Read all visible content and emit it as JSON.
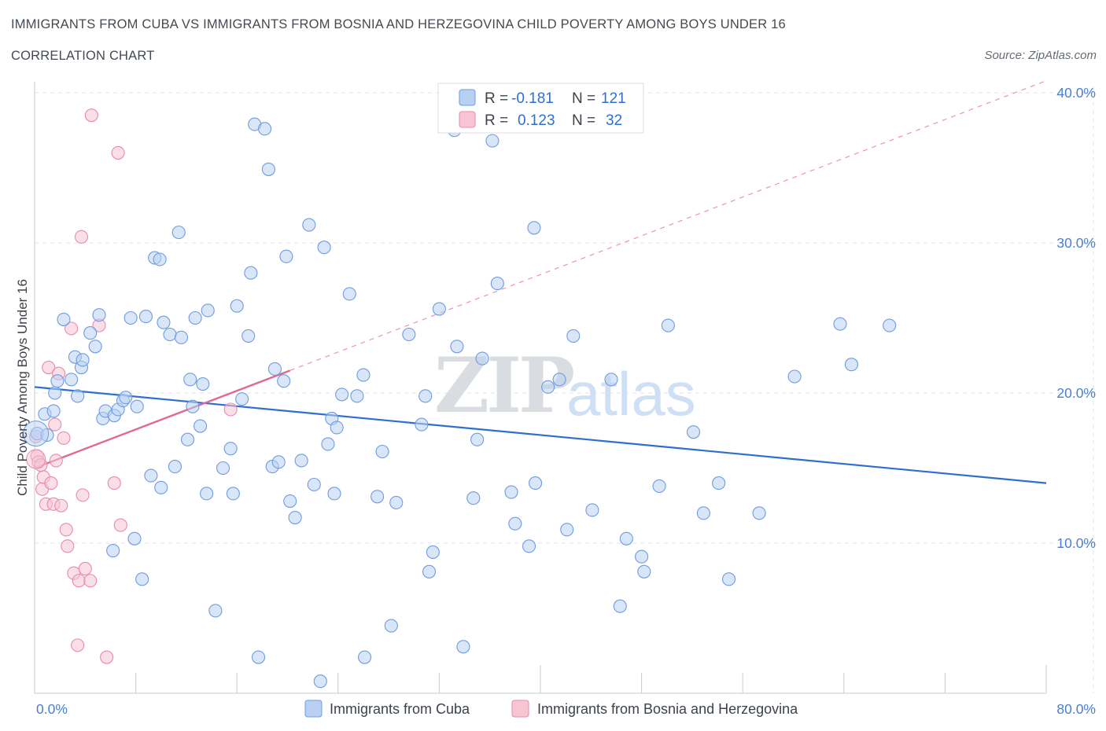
{
  "header": {
    "title": "IMMIGRANTS FROM CUBA VS IMMIGRANTS FROM BOSNIA AND HERZEGOVINA CHILD POVERTY AMONG BOYS UNDER 16",
    "subtitle": "CORRELATION CHART",
    "source": "Source: ZipAtlas.com"
  },
  "watermark": "ZIPatlas",
  "colors": {
    "blue_fill": "#b8d1f3",
    "blue_stroke": "#6f9be0",
    "blue_line": "#2f6fd0",
    "pink_fill": "#f8c4d4",
    "pink_stroke": "#e88aaa",
    "pink_line": "#e06893",
    "grid": "#dfe3e8",
    "tick_text": "#4a7fd0"
  },
  "legend": {
    "rows": [
      {
        "r_label": "R =",
        "r_value": "-0.181",
        "n_label": "N =",
        "n_value": "121"
      },
      {
        "r_label": "R =",
        "r_value": "0.123",
        "n_label": "N =",
        "n_value": "32"
      }
    ]
  },
  "chart_data": {
    "type": "scatter",
    "title": "IMMIGRANTS FROM CUBA VS IMMIGRANTS FROM BOSNIA AND HERZEGOVINA CHILD POVERTY AMONG BOYS UNDER 16",
    "xlabel": "",
    "ylabel": "Child Poverty Among Boys Under 16",
    "xlim": [
      0,
      80
    ],
    "ylim": [
      0,
      40
    ],
    "x_ticks": [
      "0.0%",
      "80.0%"
    ],
    "y_ticks": [
      "10.0%",
      "20.0%",
      "30.0%",
      "40.0%"
    ],
    "y_tick_values": [
      10,
      20,
      30,
      40
    ],
    "legend_position": "bottom",
    "series": [
      {
        "name": "Immigrants from Cuba",
        "color": "blue",
        "R": -0.181,
        "N": 121,
        "trend": {
          "x0": 0,
          "y0": 20.4,
          "x1": 80,
          "y1": 14.0
        },
        "points": [
          [
            0.2,
            17.3
          ],
          [
            0.8,
            18.6
          ],
          [
            1.0,
            17.2
          ],
          [
            1.5,
            18.8
          ],
          [
            1.6,
            20.0
          ],
          [
            1.8,
            20.8
          ],
          [
            2.3,
            24.9
          ],
          [
            2.9,
            20.9
          ],
          [
            3.2,
            22.4
          ],
          [
            3.4,
            19.8
          ],
          [
            3.7,
            21.7
          ],
          [
            3.8,
            22.2
          ],
          [
            4.4,
            24.0
          ],
          [
            4.8,
            23.1
          ],
          [
            5.1,
            25.2
          ],
          [
            5.4,
            18.3
          ],
          [
            5.6,
            18.8
          ],
          [
            6.3,
            18.5
          ],
          [
            6.6,
            18.9
          ],
          [
            7.0,
            19.5
          ],
          [
            7.2,
            19.7
          ],
          [
            7.6,
            25.0
          ],
          [
            8.1,
            19.1
          ],
          [
            7.9,
            10.3
          ],
          [
            6.2,
            9.5
          ],
          [
            8.5,
            7.6
          ],
          [
            8.8,
            25.1
          ],
          [
            9.2,
            14.5
          ],
          [
            9.5,
            29.0
          ],
          [
            9.9,
            28.9
          ],
          [
            10.0,
            13.7
          ],
          [
            10.2,
            24.7
          ],
          [
            10.7,
            23.9
          ],
          [
            11.1,
            15.1
          ],
          [
            11.4,
            30.7
          ],
          [
            11.6,
            23.7
          ],
          [
            12.1,
            16.9
          ],
          [
            12.3,
            20.9
          ],
          [
            12.5,
            19.1
          ],
          [
            12.7,
            25.0
          ],
          [
            13.1,
            17.8
          ],
          [
            13.3,
            20.6
          ],
          [
            13.6,
            13.3
          ],
          [
            13.7,
            25.5
          ],
          [
            14.3,
            5.5
          ],
          [
            14.9,
            15.0
          ],
          [
            15.5,
            16.3
          ],
          [
            15.7,
            13.3
          ],
          [
            16.0,
            25.8
          ],
          [
            16.4,
            19.6
          ],
          [
            16.9,
            23.8
          ],
          [
            17.1,
            28.0
          ],
          [
            17.4,
            37.9
          ],
          [
            17.7,
            2.4
          ],
          [
            18.2,
            37.6
          ],
          [
            18.5,
            34.9
          ],
          [
            18.8,
            15.1
          ],
          [
            19.0,
            21.6
          ],
          [
            19.3,
            15.4
          ],
          [
            19.7,
            20.8
          ],
          [
            19.9,
            29.1
          ],
          [
            20.2,
            12.8
          ],
          [
            20.6,
            11.7
          ],
          [
            21.1,
            15.5
          ],
          [
            21.7,
            31.2
          ],
          [
            22.1,
            13.9
          ],
          [
            22.6,
            0.8
          ],
          [
            22.9,
            29.7
          ],
          [
            23.2,
            16.6
          ],
          [
            23.5,
            18.3
          ],
          [
            23.7,
            13.3
          ],
          [
            23.9,
            17.7
          ],
          [
            24.3,
            19.9
          ],
          [
            24.9,
            26.6
          ],
          [
            25.5,
            19.8
          ],
          [
            26.1,
            2.4
          ],
          [
            27.1,
            13.1
          ],
          [
            27.5,
            16.1
          ],
          [
            28.2,
            4.5
          ],
          [
            28.6,
            12.7
          ],
          [
            29.6,
            23.9
          ],
          [
            30.6,
            17.9
          ],
          [
            30.9,
            19.8
          ],
          [
            31.2,
            8.1
          ],
          [
            31.5,
            9.4
          ],
          [
            32.0,
            25.6
          ],
          [
            33.4,
            23.1
          ],
          [
            33.9,
            3.1
          ],
          [
            34.7,
            13.0
          ],
          [
            35.0,
            16.9
          ],
          [
            35.4,
            22.3
          ],
          [
            36.2,
            36.8
          ],
          [
            36.6,
            27.3
          ],
          [
            37.7,
            13.4
          ],
          [
            38.0,
            11.3
          ],
          [
            39.1,
            9.8
          ],
          [
            39.5,
            31.0
          ],
          [
            39.6,
            14.0
          ],
          [
            40.6,
            20.4
          ],
          [
            41.5,
            20.9
          ],
          [
            42.1,
            10.9
          ],
          [
            42.6,
            23.8
          ],
          [
            44.1,
            12.2
          ],
          [
            45.6,
            20.9
          ],
          [
            46.3,
            5.8
          ],
          [
            46.8,
            10.3
          ],
          [
            48.0,
            9.1
          ],
          [
            48.2,
            8.1
          ],
          [
            49.4,
            13.8
          ],
          [
            50.1,
            24.5
          ],
          [
            52.1,
            17.4
          ],
          [
            52.9,
            12.0
          ],
          [
            54.1,
            14.0
          ],
          [
            54.9,
            7.6
          ],
          [
            57.3,
            12.0
          ],
          [
            60.1,
            21.1
          ],
          [
            63.7,
            24.6
          ],
          [
            64.6,
            21.9
          ],
          [
            67.6,
            24.5
          ],
          [
            33.2,
            37.5
          ],
          [
            26.0,
            21.2
          ]
        ]
      },
      {
        "name": "Immigrants from Bosnia and Herzegovina",
        "color": "pink",
        "R": 0.123,
        "N": 32,
        "trend": {
          "x0": 0,
          "y0": 15.0,
          "x1": 20.2,
          "y1": 21.5,
          "dashed_to_x": 80,
          "dashed_to_y": 40.8
        },
        "points": [
          [
            0.1,
            17.1
          ],
          [
            0.2,
            15.8
          ],
          [
            0.3,
            15.4
          ],
          [
            0.5,
            15.2
          ],
          [
            0.6,
            13.6
          ],
          [
            0.7,
            14.4
          ],
          [
            0.9,
            12.6
          ],
          [
            1.1,
            21.7
          ],
          [
            1.3,
            14.0
          ],
          [
            1.5,
            12.6
          ],
          [
            1.6,
            17.9
          ],
          [
            1.7,
            15.5
          ],
          [
            1.9,
            21.3
          ],
          [
            2.1,
            12.5
          ],
          [
            2.3,
            17.0
          ],
          [
            2.5,
            10.9
          ],
          [
            2.6,
            9.8
          ],
          [
            2.9,
            24.3
          ],
          [
            3.1,
            8.0
          ],
          [
            3.4,
            3.2
          ],
          [
            3.5,
            7.5
          ],
          [
            3.7,
            30.4
          ],
          [
            3.8,
            13.2
          ],
          [
            4.0,
            8.3
          ],
          [
            4.4,
            7.5
          ],
          [
            4.5,
            38.5
          ],
          [
            5.1,
            24.5
          ],
          [
            5.7,
            2.4
          ],
          [
            6.3,
            14.0
          ],
          [
            6.6,
            36.0
          ],
          [
            6.8,
            11.2
          ],
          [
            15.5,
            18.9
          ]
        ]
      }
    ]
  },
  "bottom_legend": {
    "items": [
      "Immigrants from Cuba",
      "Immigrants from Bosnia and Herzegovina"
    ]
  }
}
